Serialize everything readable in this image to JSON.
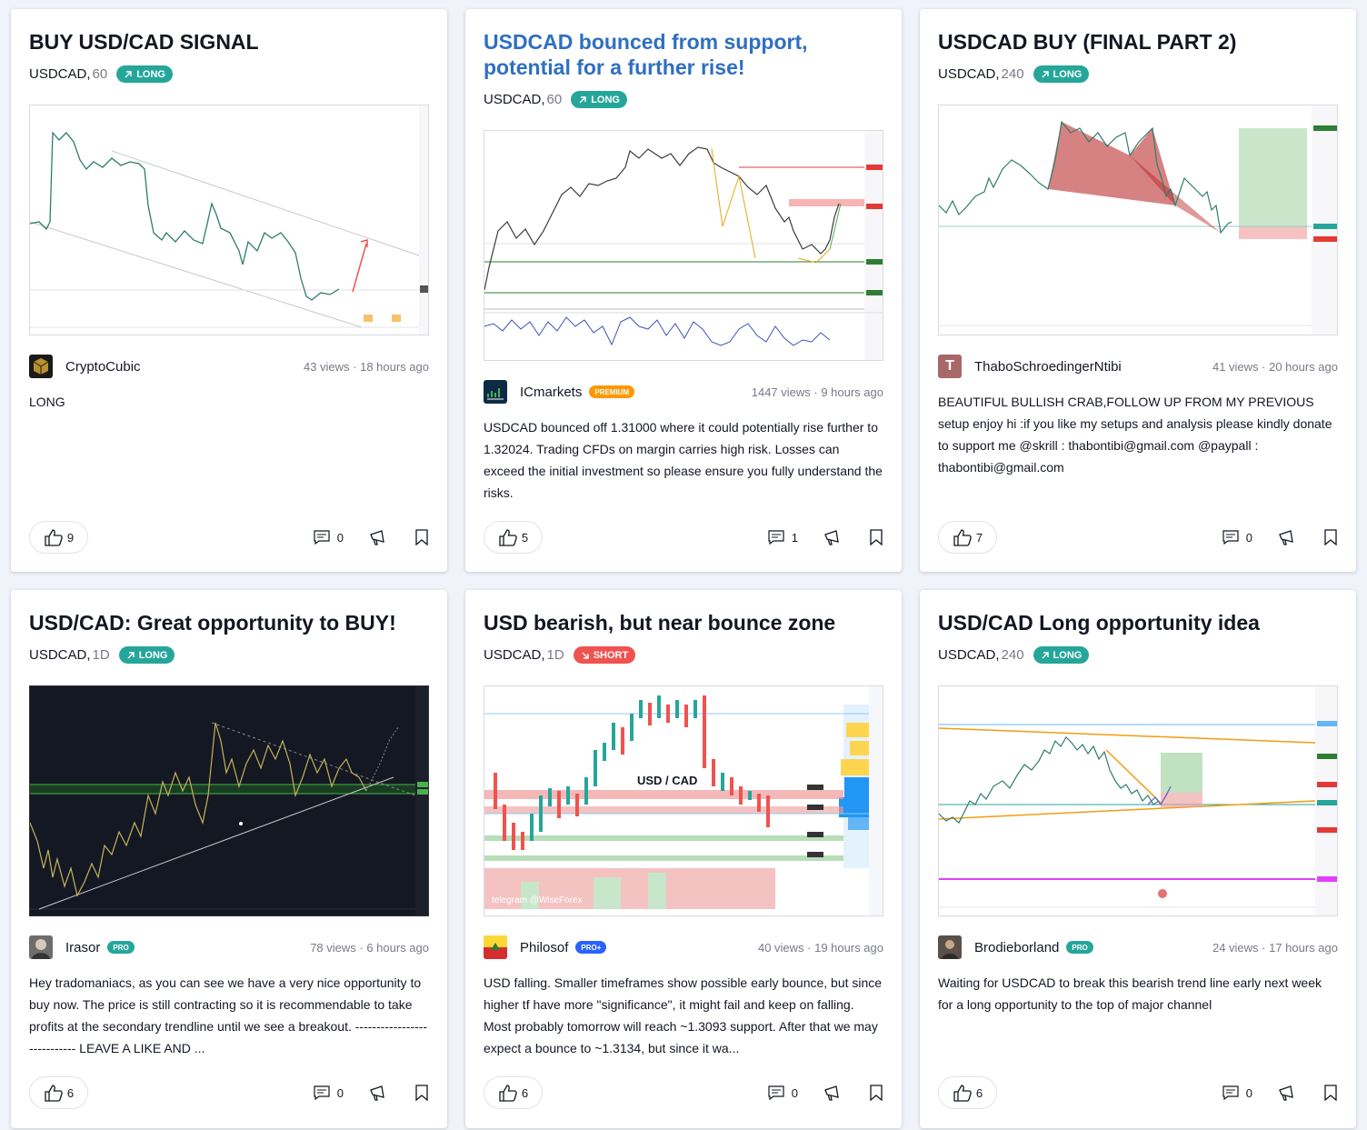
{
  "cards": [
    {
      "title": "BUY USD/CAD SIGNAL",
      "symbol": "USDCAD,",
      "timeframe": "60",
      "direction": "LONG",
      "author": "CryptoCubic",
      "stats": "43 views · 18 hours ago",
      "description": "LONG",
      "likes": "9",
      "comments": "0"
    },
    {
      "title": "USDCAD bounced from support, potential for a further rise!",
      "symbol": "USDCAD,",
      "timeframe": "60",
      "direction": "LONG",
      "author": "ICmarkets",
      "tier": "PREMIUM",
      "stats": "1447 views · 9 hours ago",
      "description": "USDCAD bounced off 1.31000 where it could potentially rise further to 1.32024. Trading CFDs on margin carries high risk. Losses can exceed the initial investment so please ensure you fully understand the risks.",
      "likes": "5",
      "comments": "1"
    },
    {
      "title": "USDCAD BUY (FINAL PART 2)",
      "symbol": "USDCAD,",
      "timeframe": "240",
      "direction": "LONG",
      "author": "ThaboSchroedingerNtibi",
      "avatar_letter": "T",
      "stats": "41 views · 20 hours ago",
      "description": "BEAUTIFUL BULLISH CRAB,FOLLOW UP FROM MY PREVIOUS setup enjoy hi :if you like my setups and analysis please kindly donate to support me @skrill : thabontibi@gmail.com @paypall : thabontibi@gmail.com",
      "likes": "7",
      "comments": "0"
    },
    {
      "title": "USD/CAD: Great opportunity to BUY!",
      "symbol": "USDCAD,",
      "timeframe": "1D",
      "direction": "LONG",
      "author": "Irasor",
      "tier": "PRO",
      "stats": "78 views · 6 hours ago",
      "description": "Hey tradomaniacs, as you can see we have a very nice opportunity to buy now. The price is still contracting so it is recommendable to take profits at the secondary trendline until we see a breakout. ---------------------------- LEAVE A LIKE AND ...",
      "likes": "6",
      "comments": "0"
    },
    {
      "title": "USD bearish, but near bounce zone",
      "symbol": "USDCAD,",
      "timeframe": "1D",
      "direction": "SHORT",
      "author": "Philosof",
      "tier": "PRO+",
      "stats": "40 views · 19 hours ago",
      "description": "USD falling. Smaller timeframes show possible early bounce, but since higher tf have more \"significance\", it might fail and keep on falling. Most probably tomorrow will reach ~1.3093 support. After that we may expect a bounce to ~1.3134, but since it wa...",
      "likes": "6",
      "comments": "0",
      "chart_label": "USD / CAD",
      "watermark": "telegram @WiseForex"
    },
    {
      "title": "USD/CAD Long opportunity idea",
      "symbol": "USDCAD,",
      "timeframe": "240",
      "direction": "LONG",
      "author": "Brodieborland",
      "tier": "PRO",
      "stats": "24 views · 17 hours ago",
      "description": "Waiting for USDCAD to break this bearish trend line early next week for a long opportunity to the top of major channel",
      "likes": "6",
      "comments": "0"
    }
  ],
  "colors": {
    "long": "#26a69a",
    "short": "#ef5350",
    "link_title": "#2f6fc0"
  }
}
